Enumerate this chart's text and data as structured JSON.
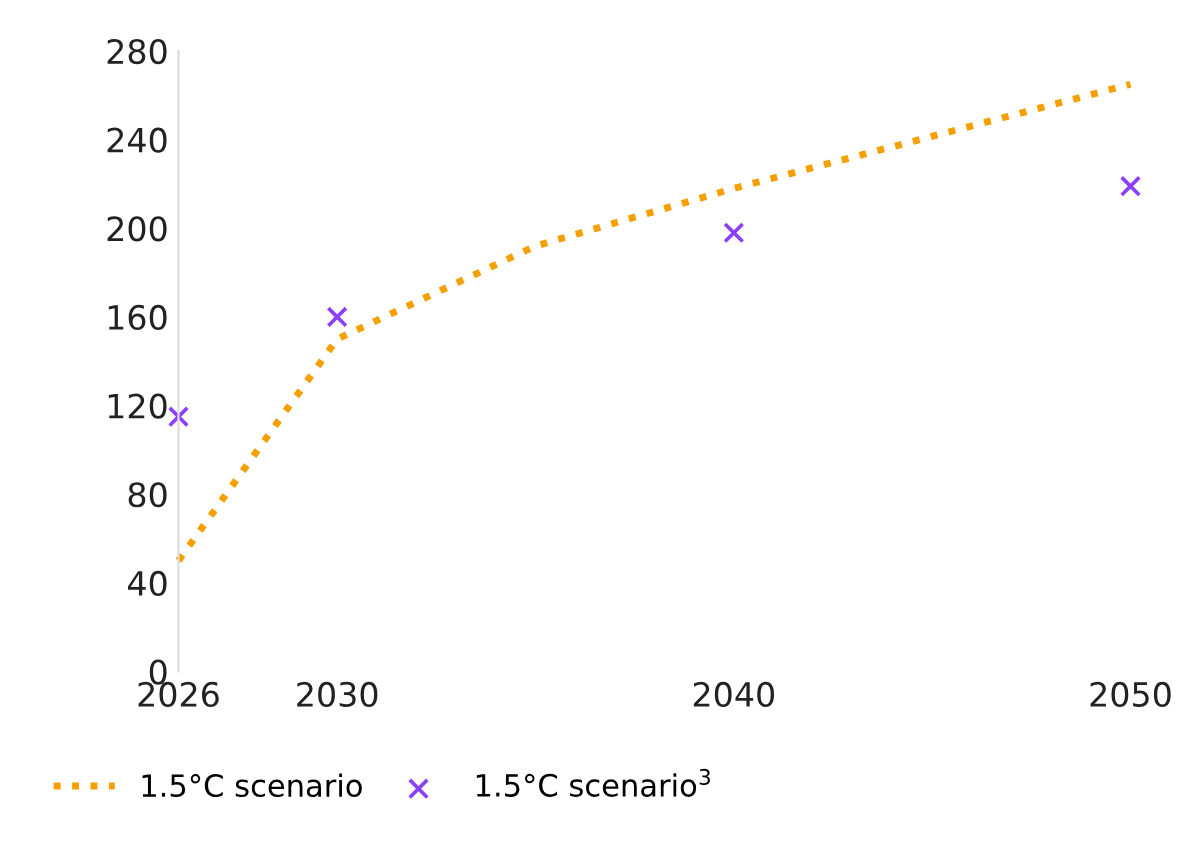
{
  "chart_data": {
    "type": "line",
    "series": [
      {
        "name": "1.5°C scenario",
        "color": "#f5a000",
        "line_style": "dotted",
        "marker": "none",
        "x": [
          2026,
          2030,
          2035,
          2040,
          2050
        ],
        "values": [
          50,
          150,
          192,
          218,
          265
        ]
      },
      {
        "name": "1.5°C scenario$^{3}$",
        "type": "scatter",
        "color": "#8a3ffc",
        "marker": "cross",
        "x": [
          2026,
          2030,
          2040,
          2050
        ],
        "values": [
          115,
          160,
          198,
          219
        ]
      }
    ],
    "xlim": [
      2026,
      2050
    ],
    "xticks": [
      2026,
      2030,
      2040,
      2050
    ],
    "ylim": [
      0,
      280
    ],
    "yticks": [
      0,
      40,
      80,
      120,
      160,
      200,
      240,
      280
    ],
    "grid": false,
    "legend": "bottom left"
  }
}
